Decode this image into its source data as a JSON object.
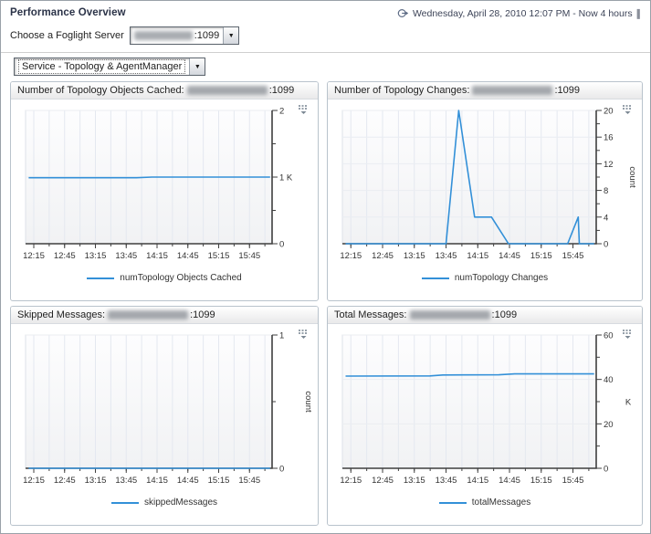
{
  "page": {
    "title": "Performance Overview",
    "time_range": "Wednesday, April 28, 2010 12:07 PM - Now 4 hours",
    "server_chooser_label": "Choose a Foglight Server",
    "server_host_redacted": true,
    "server_port": ":1099",
    "service_dropdown": "Service - Topology & AgentManager"
  },
  "icons": {
    "time_range": "clock-arrow-icon",
    "dropdown": "caret-down-icon",
    "customizer": "chart-options-icon"
  },
  "colors": {
    "series_line": "#3390d8",
    "axis": "#3f3f3f",
    "grid_vertical": "#e4e8f0",
    "grid_horizontal": "#eaedf2",
    "panel_border": "#b9c3cc"
  },
  "chart_data": [
    {
      "type": "line",
      "title": "Number of Topology Objects Cached:",
      "host_redacted": true,
      "port": ":1099",
      "xlim": [
        "12:07",
        "16:07"
      ],
      "x_tick_labels": [
        "12:15",
        "12:45",
        "13:15",
        "13:45",
        "14:15",
        "14:45",
        "15:15",
        "15:45"
      ],
      "x_minor_step_minutes": 15,
      "ylim": [
        0,
        2
      ],
      "yticks": [
        {
          "v": 0,
          "label": "0"
        },
        {
          "v": 1,
          "label": "1 K"
        },
        {
          "v": 2,
          "label": "2"
        }
      ],
      "yminor": [
        0.5,
        1.5
      ],
      "unit": "",
      "unit_rotated": false,
      "grid": true,
      "legend_position": "bottom",
      "series": [
        {
          "name": "numTopology Objects Cached",
          "color": "#3390d8",
          "points": [
            [
              "12:10",
              0.99
            ],
            [
              "13:55",
              0.99
            ],
            [
              "14:10",
              1.0
            ],
            [
              "16:05",
              1.0
            ]
          ]
        }
      ]
    },
    {
      "type": "line",
      "title": "Number of Topology Changes:",
      "host_redacted": true,
      "port": ":1099",
      "xlim": [
        "12:07",
        "16:07"
      ],
      "x_tick_labels": [
        "12:15",
        "12:45",
        "13:15",
        "13:45",
        "14:15",
        "14:45",
        "15:15",
        "15:45"
      ],
      "x_minor_step_minutes": 15,
      "ylim": [
        0,
        20
      ],
      "yticks": [
        {
          "v": 0,
          "label": "0"
        },
        {
          "v": 4,
          "label": "4"
        },
        {
          "v": 8,
          "label": "8"
        },
        {
          "v": 12,
          "label": "12"
        },
        {
          "v": 16,
          "label": "16"
        },
        {
          "v": 20,
          "label": "20"
        }
      ],
      "yminor": [
        2,
        6,
        10,
        14,
        18
      ],
      "unit": "count",
      "unit_rotated": true,
      "grid": true,
      "legend_position": "bottom",
      "series": [
        {
          "name": "numTopology Changes",
          "color": "#3390d8",
          "points": [
            [
              "12:10",
              0
            ],
            [
              "13:45",
              0
            ],
            [
              "13:57",
              20
            ],
            [
              "14:12",
              4
            ],
            [
              "14:28",
              4
            ],
            [
              "14:44",
              0
            ],
            [
              "15:40",
              0
            ],
            [
              "15:50",
              4
            ],
            [
              "15:51",
              0
            ],
            [
              "16:05",
              0
            ]
          ]
        }
      ]
    },
    {
      "type": "line",
      "title": "Skipped Messages:",
      "host_redacted": true,
      "port": ":1099",
      "xlim": [
        "12:07",
        "16:07"
      ],
      "x_tick_labels": [
        "12:15",
        "12:45",
        "13:15",
        "13:45",
        "14:15",
        "14:45",
        "15:15",
        "15:45"
      ],
      "x_minor_step_minutes": 15,
      "ylim": [
        0,
        1
      ],
      "yticks": [
        {
          "v": 0,
          "label": "0"
        },
        {
          "v": 1,
          "label": "1"
        }
      ],
      "yminor": [
        0.5
      ],
      "unit": "count",
      "unit_rotated": true,
      "grid": true,
      "legend_position": "bottom",
      "series": [
        {
          "name": "skippedMessages",
          "color": "#3390d8",
          "points": [
            [
              "12:10",
              0
            ],
            [
              "16:05",
              0
            ]
          ]
        }
      ]
    },
    {
      "type": "line",
      "title": "Total Messages:",
      "host_redacted": true,
      "port": ":1099",
      "xlim": [
        "12:07",
        "16:07"
      ],
      "x_tick_labels": [
        "12:15",
        "12:45",
        "13:15",
        "13:45",
        "14:15",
        "14:45",
        "15:15",
        "15:45"
      ],
      "x_minor_step_minutes": 15,
      "ylim": [
        0,
        60
      ],
      "yticks": [
        {
          "v": 0,
          "label": "0"
        },
        {
          "v": 20,
          "label": "20"
        },
        {
          "v": 40,
          "label": "40"
        },
        {
          "v": 60,
          "label": "60"
        }
      ],
      "yminor": [
        10,
        30,
        50
      ],
      "unit": "K",
      "unit_rotated": false,
      "grid": true,
      "legend_position": "bottom",
      "series": [
        {
          "name": "totalMessages",
          "color": "#3390d8",
          "points": [
            [
              "12:10",
              41.5
            ],
            [
              "13:30",
              41.6
            ],
            [
              "13:42",
              42.0
            ],
            [
              "14:35",
              42.1
            ],
            [
              "14:50",
              42.5
            ],
            [
              "16:05",
              42.5
            ]
          ]
        }
      ]
    }
  ]
}
